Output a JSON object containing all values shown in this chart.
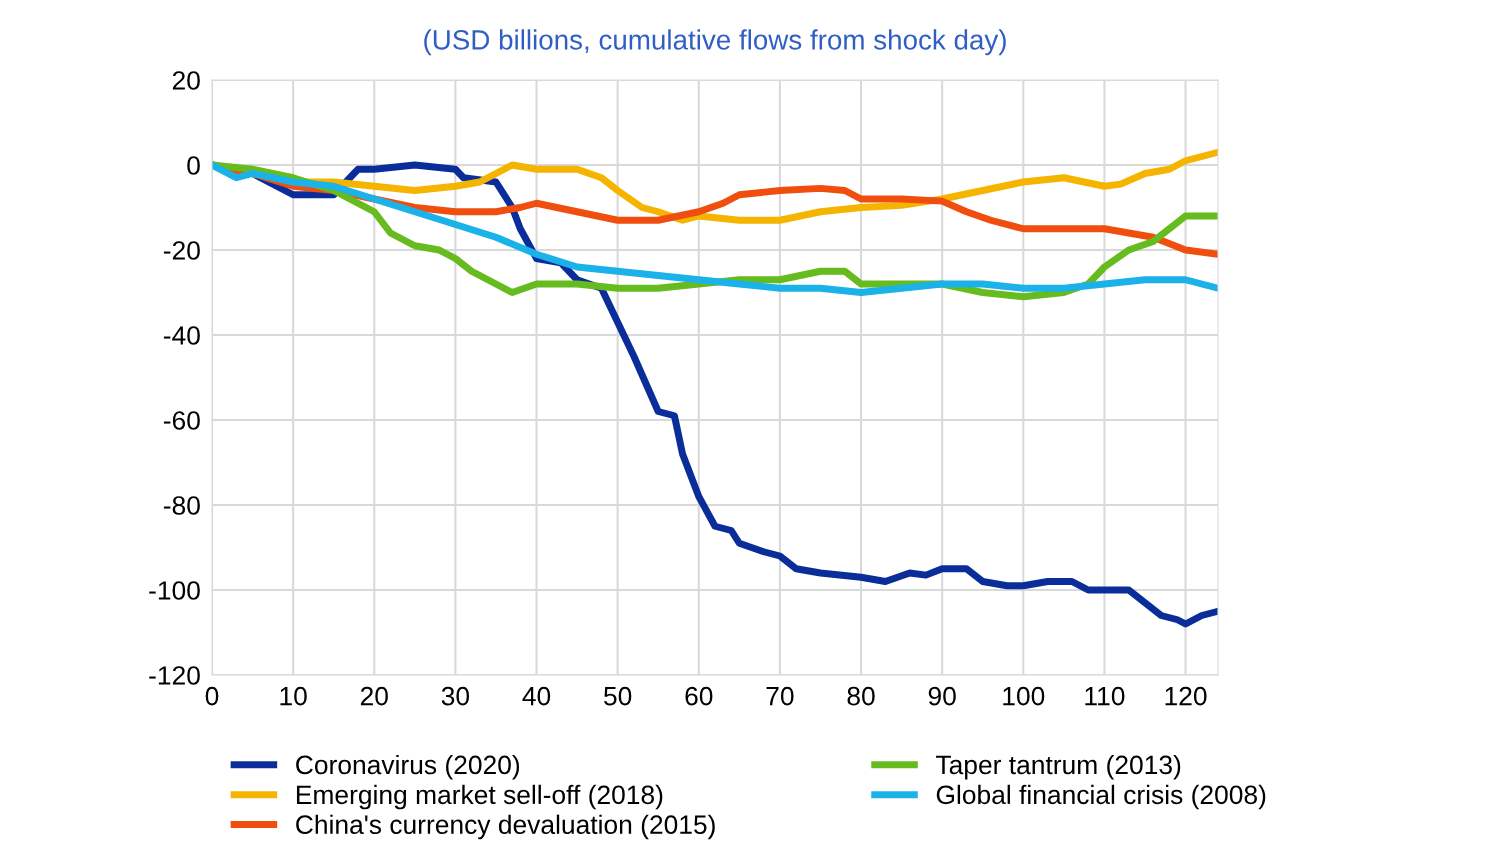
{
  "chart_data": {
    "type": "line",
    "title": "(USD billions, cumulative flows from shock day)",
    "xlim": [
      0,
      124
    ],
    "ylim": [
      -120,
      20
    ],
    "xticks": [
      0,
      10,
      20,
      30,
      40,
      50,
      60,
      70,
      80,
      90,
      100,
      110,
      120
    ],
    "yticks": [
      -120,
      -100,
      -80,
      -60,
      -40,
      -20,
      0,
      20
    ],
    "grid": true,
    "legend": "bottom",
    "marker": "none",
    "line_style": "solid",
    "series": [
      {
        "name": "Coronavirus (2020)",
        "color": "#0b2d9a",
        "x": [
          0,
          5,
          10,
          15,
          17,
          18,
          20,
          25,
          30,
          31,
          35,
          37,
          38,
          40,
          43,
          45,
          48,
          50,
          52,
          55,
          57,
          58,
          60,
          62,
          64,
          65,
          68,
          70,
          72,
          75,
          80,
          83,
          86,
          88,
          90,
          93,
          95,
          98,
          100,
          103,
          106,
          108,
          110,
          113,
          115,
          117,
          119,
          120,
          122,
          124
        ],
        "values": [
          0,
          -2,
          -7,
          -7,
          -3,
          -1,
          -1,
          0,
          -1,
          -3,
          -4,
          -10,
          -15,
          -22,
          -23,
          -27,
          -29,
          -37,
          -45,
          -58,
          -59,
          -68,
          -78,
          -85,
          -86,
          -89,
          -91,
          -92,
          -95,
          -96,
          -97,
          -98,
          -96,
          -96.5,
          -95,
          -95,
          -98,
          -99,
          -99,
          -98,
          -98,
          -100,
          -100,
          -100,
          -103,
          -106,
          -107,
          -108,
          -106,
          -105
        ]
      },
      {
        "name": "Emerging market sell-off (2018)",
        "color": "#f5b400",
        "x": [
          0,
          5,
          10,
          15,
          20,
          25,
          30,
          33,
          35,
          37,
          40,
          45,
          48,
          50,
          53,
          55,
          58,
          60,
          65,
          70,
          75,
          80,
          85,
          90,
          95,
          100,
          105,
          110,
          112,
          115,
          118,
          120,
          124
        ],
        "values": [
          0,
          -2,
          -4,
          -4,
          -5,
          -6,
          -5,
          -4,
          -2,
          0,
          -1,
          -1,
          -3,
          -6,
          -10,
          -11,
          -13,
          -12,
          -13,
          -13,
          -11,
          -10,
          -9.5,
          -8,
          -6,
          -4,
          -3,
          -5,
          -4.5,
          -2,
          -1,
          1,
          3
        ]
      },
      {
        "name": "China's currency devaluation (2015)",
        "color": "#f04e0f",
        "x": [
          0,
          5,
          10,
          15,
          20,
          25,
          30,
          35,
          38,
          40,
          45,
          50,
          55,
          60,
          63,
          65,
          70,
          75,
          78,
          80,
          85,
          90,
          93,
          96,
          100,
          105,
          110,
          113,
          116,
          120,
          124
        ],
        "values": [
          0,
          -2,
          -5,
          -6,
          -8,
          -10,
          -11,
          -11,
          -10,
          -9,
          -11,
          -13,
          -13,
          -11,
          -9,
          -7,
          -6,
          -5.5,
          -6,
          -8,
          -8,
          -8.5,
          -11,
          -13,
          -15,
          -15,
          -15,
          -16,
          -17,
          -20,
          -21
        ]
      },
      {
        "name": "Taper tantrum (2013)",
        "color": "#66bb1e",
        "x": [
          0,
          5,
          10,
          15,
          18,
          20,
          22,
          25,
          28,
          30,
          32,
          35,
          37,
          40,
          45,
          50,
          55,
          60,
          65,
          70,
          75,
          78,
          80,
          85,
          90,
          95,
          100,
          105,
          108,
          110,
          113,
          116,
          120,
          124
        ],
        "values": [
          0,
          -1,
          -3,
          -6,
          -9,
          -11,
          -16,
          -19,
          -20,
          -22,
          -25,
          -28,
          -30,
          -28,
          -28,
          -29,
          -29,
          -28,
          -27,
          -27,
          -25,
          -25,
          -28,
          -28,
          -28,
          -30,
          -31,
          -30,
          -28,
          -24,
          -20,
          -18,
          -12,
          -12
        ]
      },
      {
        "name": "Global financial crisis (2008)",
        "color": "#1ab2e8",
        "x": [
          0,
          3,
          5,
          10,
          15,
          20,
          25,
          30,
          35,
          40,
          45,
          50,
          55,
          60,
          65,
          70,
          75,
          80,
          85,
          90,
          95,
          100,
          105,
          110,
          115,
          120,
          124
        ],
        "values": [
          0,
          -3,
          -2,
          -4,
          -5,
          -8,
          -11,
          -14,
          -17,
          -21,
          -24,
          -25,
          -26,
          -27,
          -28,
          -29,
          -29,
          -30,
          -29,
          -28,
          -28,
          -29,
          -29,
          -28,
          -27,
          -27,
          -29
        ]
      }
    ]
  }
}
